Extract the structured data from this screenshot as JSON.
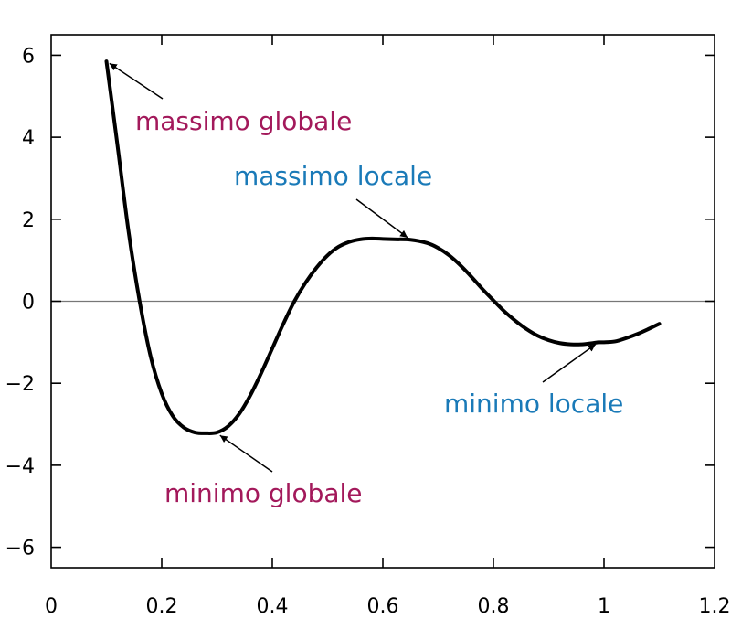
{
  "chart_data": {
    "type": "line",
    "title": "",
    "xlabel": "",
    "ylabel": "",
    "xlim": [
      0,
      1.2
    ],
    "ylim": [
      -6.5,
      6.5
    ],
    "grid": false,
    "legend": "none",
    "x_ticks": [
      {
        "value": 0,
        "label": "0"
      },
      {
        "value": 0.2,
        "label": "0.2"
      },
      {
        "value": 0.4,
        "label": "0.4"
      },
      {
        "value": 0.6,
        "label": "0.6"
      },
      {
        "value": 0.8,
        "label": "0.8"
      },
      {
        "value": 1.0,
        "label": "1"
      },
      {
        "value": 1.2,
        "label": "1.2"
      }
    ],
    "y_ticks": [
      {
        "value": 6,
        "label": "6"
      },
      {
        "value": 4,
        "label": "4"
      },
      {
        "value": 2,
        "label": "2"
      },
      {
        "value": 0,
        "label": "0"
      },
      {
        "value": -2,
        "label": "−2"
      },
      {
        "value": -4,
        "label": "−4"
      },
      {
        "value": -6,
        "label": "−6"
      }
    ],
    "zero_line": true,
    "series": [
      {
        "color": "#000000",
        "x": [
          0.1,
          0.12,
          0.14,
          0.16,
          0.18,
          0.2,
          0.22,
          0.24,
          0.26,
          0.28,
          0.3,
          0.32,
          0.34,
          0.36,
          0.38,
          0.4,
          0.42,
          0.44,
          0.46,
          0.48,
          0.5,
          0.52,
          0.54,
          0.56,
          0.58,
          0.6,
          0.62,
          0.65,
          0.68,
          0.7,
          0.72,
          0.74,
          0.76,
          0.78,
          0.8,
          0.82,
          0.84,
          0.86,
          0.88,
          0.9,
          0.92,
          0.94,
          0.96,
          0.98,
          0.99,
          1.0,
          1.02,
          1.04,
          1.06,
          1.08,
          1.1
        ],
        "y": [
          5.85,
          3.8,
          1.7,
          0.0,
          -1.35,
          -2.25,
          -2.8,
          -3.08,
          -3.2,
          -3.22,
          -3.2,
          -3.05,
          -2.75,
          -2.3,
          -1.75,
          -1.15,
          -0.55,
          0.0,
          0.45,
          0.82,
          1.12,
          1.33,
          1.45,
          1.51,
          1.53,
          1.52,
          1.51,
          1.5,
          1.42,
          1.3,
          1.12,
          0.88,
          0.6,
          0.3,
          0.02,
          -0.25,
          -0.48,
          -0.68,
          -0.84,
          -0.95,
          -1.02,
          -1.05,
          -1.05,
          -1.02,
          -1.0,
          -1.0,
          -0.98,
          -0.9,
          -0.8,
          -0.68,
          -0.55
        ]
      }
    ],
    "annotations": [
      {
        "text": "massimo globale",
        "color": "#a3195b",
        "point": {
          "x": 0.1,
          "y": 5.85
        }
      },
      {
        "text": "massimo locale",
        "color": "#1a7ab8",
        "point": {
          "x": 0.65,
          "y": 1.5
        }
      },
      {
        "text": "minimo globale",
        "color": "#a3195b",
        "point": {
          "x": 0.3,
          "y": -3.22
        }
      },
      {
        "text": "minimo locale",
        "color": "#1a7ab8",
        "point": {
          "x": 0.99,
          "y": -1.0
        }
      }
    ]
  }
}
